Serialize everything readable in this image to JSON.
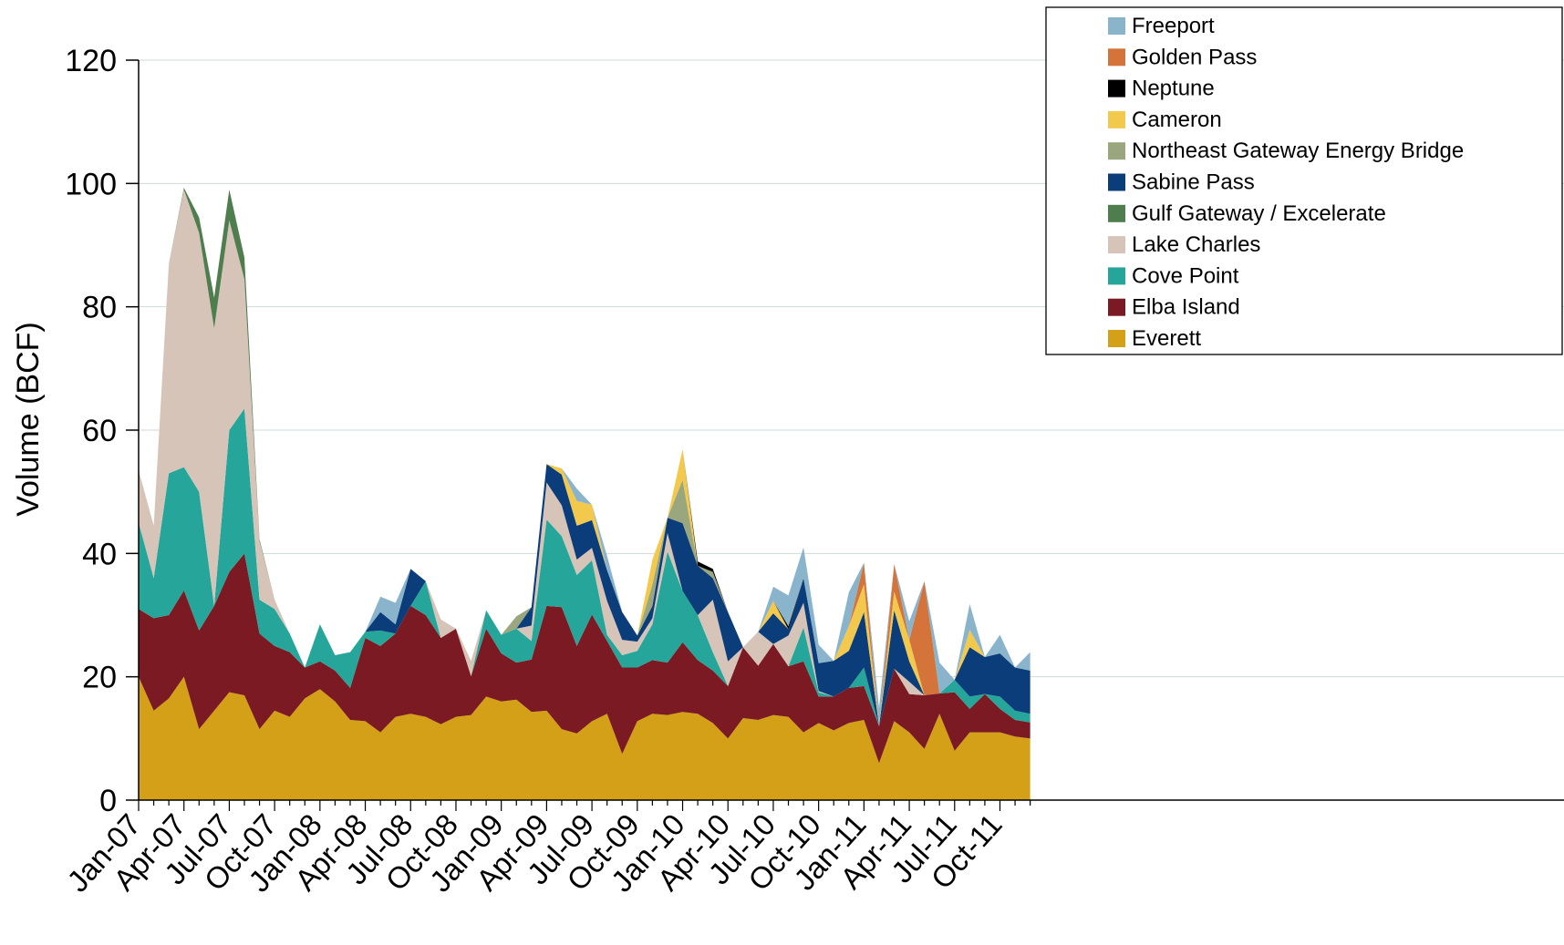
{
  "chart_data": {
    "type": "area",
    "stacked": true,
    "title": "",
    "xlabel": "",
    "ylabel": "Volume (BCF)",
    "ylim": [
      0,
      120
    ],
    "yticks": [
      0,
      20,
      40,
      60,
      80,
      100,
      120
    ],
    "grid": "horizontal",
    "legend_position": "top-right",
    "x_tick_labels": [
      "Jan-07",
      "Apr-07",
      "Jul-07",
      "Oct-07",
      "Jan-08",
      "Apr-08",
      "Jul-08",
      "Oct-08",
      "Jan-09",
      "Apr-09",
      "Jul-09",
      "Oct-09",
      "Jan-10",
      "Apr-10",
      "Jul-10",
      "Oct-10",
      "Jan-11",
      "Apr-11",
      "Jul-11",
      "Oct-11"
    ],
    "x": [
      "Jan-07",
      "Feb-07",
      "Mar-07",
      "Apr-07",
      "May-07",
      "Jun-07",
      "Jul-07",
      "Aug-07",
      "Sep-07",
      "Oct-07",
      "Nov-07",
      "Dec-07",
      "Jan-08",
      "Feb-08",
      "Mar-08",
      "Apr-08",
      "May-08",
      "Jun-08",
      "Jul-08",
      "Aug-08",
      "Sep-08",
      "Oct-08",
      "Nov-08",
      "Dec-08",
      "Jan-09",
      "Feb-09",
      "Mar-09",
      "Apr-09",
      "May-09",
      "Jun-09",
      "Jul-09",
      "Aug-09",
      "Sep-09",
      "Oct-09",
      "Nov-09",
      "Dec-09",
      "Jan-10",
      "Feb-10",
      "Mar-10",
      "Apr-10",
      "May-10",
      "Jun-10",
      "Jul-10",
      "Aug-10",
      "Sep-10",
      "Oct-10",
      "Nov-10",
      "Dec-10",
      "Jan-11",
      "Feb-11",
      "Mar-11",
      "Apr-11",
      "May-11",
      "Jun-11",
      "Jul-11",
      "Aug-11",
      "Sep-11",
      "Oct-11",
      "Nov-11",
      "Dec-11"
    ],
    "series": [
      {
        "name": "Everett",
        "color": "#D4A017",
        "values": [
          20,
          14.5,
          16.5,
          20,
          11.5,
          14.5,
          17.5,
          17,
          11.5,
          14.5,
          13.5,
          16.5,
          18,
          16,
          13,
          12.8,
          11,
          13.5,
          14,
          13.5,
          12.3,
          13.5,
          13.8,
          16.8,
          16,
          16.3,
          14.3,
          14.5,
          11.5,
          10.8,
          12.8,
          14,
          7.5,
          12.8,
          14,
          13.8,
          14.3,
          14,
          12.5,
          10,
          13.3,
          13,
          13.8,
          13.5,
          11,
          12.5,
          11.3,
          12.5,
          13,
          6,
          12.8,
          11,
          8.3,
          14,
          8,
          11,
          11,
          11,
          10.3,
          10
        ]
      },
      {
        "name": "Elba Island",
        "color": "#7B1A22",
        "values": [
          11,
          15,
          13.5,
          14,
          16,
          17,
          19.5,
          23,
          15.5,
          10.5,
          10.5,
          5,
          4.5,
          5,
          5.2,
          13.5,
          14,
          13.5,
          17.5,
          16.5,
          14,
          14.3,
          6.3,
          11,
          7.8,
          6,
          8.5,
          17,
          19.8,
          14.2,
          17.3,
          11.8,
          14,
          8.7,
          8.7,
          8.5,
          11.3,
          8.7,
          8.5,
          8.5,
          11.5,
          8.8,
          11.5,
          8.2,
          11.5,
          4.3,
          5.5,
          5.7,
          5.5,
          6,
          8.5,
          6.2,
          8.7,
          3.3,
          9.5,
          3.8,
          6.2,
          3.8,
          2.7,
          2.6
        ]
      },
      {
        "name": "Cove Point",
        "color": "#26A69A",
        "values": [
          14,
          6.5,
          23,
          20,
          22.5,
          0,
          23,
          23.5,
          5.5,
          6,
          3,
          0,
          6,
          2.5,
          5.8,
          1,
          2.5,
          0,
          0,
          5.5,
          0,
          0,
          0,
          3,
          3,
          5.5,
          3,
          14,
          11.5,
          11.5,
          8.8,
          1,
          2,
          2.7,
          5.8,
          18,
          8.3,
          7.3,
          3,
          0,
          0,
          0,
          0,
          0,
          5.5,
          0.7,
          0,
          0,
          3,
          0,
          0,
          0,
          0,
          0,
          2,
          2,
          0,
          2,
          1.5,
          1.4
        ]
      },
      {
        "name": "Lake Charles",
        "color": "#D7C4B8",
        "values": [
          8.5,
          8.5,
          34,
          45,
          42,
          45,
          34,
          21,
          9.5,
          1.5,
          0,
          0,
          0,
          0,
          0,
          0,
          0,
          0,
          0,
          0,
          3,
          0,
          2.5,
          0,
          0,
          0,
          2.5,
          6,
          5,
          2.5,
          2,
          5.5,
          2.5,
          1.5,
          1,
          3,
          0,
          0,
          8.5,
          4,
          0,
          5.5,
          0,
          5,
          4,
          0.2,
          0,
          0,
          0,
          0,
          0,
          2,
          0,
          0,
          0,
          0,
          0,
          0,
          0,
          0
        ]
      },
      {
        "name": "Gulf Gateway / Excelerate",
        "color": "#4E7D4E",
        "values": [
          0,
          0,
          0,
          0.3,
          2.5,
          5,
          5,
          3.5,
          0.3,
          0,
          0,
          0,
          0,
          0,
          0,
          0,
          0,
          0,
          0,
          0,
          0,
          0,
          0,
          0,
          0,
          0,
          0,
          0,
          0,
          0,
          0,
          0,
          0,
          0,
          0,
          0,
          0,
          0,
          0,
          0,
          0,
          0,
          0,
          0,
          0,
          0,
          0,
          0,
          0,
          0,
          0,
          0,
          0,
          0,
          0,
          0,
          0,
          0,
          0,
          0
        ]
      },
      {
        "name": "Sabine Pass",
        "color": "#0B3D7A",
        "values": [
          0,
          0,
          0,
          0,
          0,
          0,
          0,
          0,
          0,
          0,
          0,
          0,
          0,
          0,
          0,
          0,
          3,
          1.5,
          6,
          0,
          0,
          0,
          0,
          0,
          0,
          0,
          3,
          3,
          5,
          5.5,
          4.5,
          5,
          4.5,
          1,
          2,
          2.5,
          11,
          8,
          3.5,
          8,
          0,
          0,
          5,
          1,
          4,
          4.5,
          5.8,
          6,
          9,
          0,
          9.5,
          3.3,
          0,
          0,
          0,
          8,
          6,
          7,
          7,
          7
        ]
      },
      {
        "name": "Northeast Gateway Energy Bridge",
        "color": "#9AA67E",
        "values": [
          0,
          0,
          0,
          0,
          0,
          0,
          0,
          0,
          0,
          0,
          0,
          0,
          0,
          0,
          0,
          0,
          0,
          0,
          0,
          0,
          0,
          0,
          0,
          0,
          0,
          2,
          0,
          0,
          0,
          0,
          0,
          0,
          0,
          0,
          3.5,
          0,
          7,
          0,
          1,
          0,
          0,
          0,
          0,
          0,
          0,
          0,
          0,
          0,
          0,
          0,
          0,
          0,
          0,
          0,
          0,
          0,
          0,
          0,
          0,
          0
        ]
      },
      {
        "name": "Cameron",
        "color": "#F2C94C",
        "values": [
          0,
          0,
          0,
          0,
          0,
          0,
          0,
          0,
          0,
          0,
          0,
          0,
          0,
          0,
          0,
          0,
          0,
          0,
          0,
          0,
          0,
          0,
          0,
          0,
          0,
          0,
          0,
          0,
          1,
          4,
          2.5,
          0,
          0,
          0,
          4,
          0,
          5,
          0,
          0,
          0,
          0,
          0,
          2,
          0,
          0,
          0,
          0,
          4,
          4.5,
          0,
          3,
          3.5,
          0,
          0,
          0,
          2.8,
          0,
          0,
          0,
          0
        ]
      },
      {
        "name": "Neptune",
        "color": "#000000",
        "values": [
          0,
          0,
          0,
          0,
          0,
          0,
          0,
          0,
          0,
          0,
          0,
          0,
          0,
          0,
          0,
          0,
          0,
          0,
          0,
          0,
          0,
          0,
          0,
          0,
          0,
          0,
          0,
          0,
          0,
          0,
          0,
          0,
          0,
          0,
          0,
          0,
          0,
          0.7,
          0.5,
          0,
          0,
          0,
          0,
          0.5,
          0,
          0,
          0,
          0,
          0,
          0,
          0,
          0,
          0,
          0,
          0,
          0,
          0,
          0,
          0,
          0
        ]
      },
      {
        "name": "Golden Pass",
        "color": "#D4733A",
        "values": [
          0,
          0,
          0,
          0,
          0,
          0,
          0,
          0,
          0,
          0,
          0,
          0,
          0,
          0,
          0,
          0,
          0,
          0,
          0,
          0,
          0,
          0,
          0,
          0,
          0,
          0,
          0,
          0,
          0,
          0,
          0,
          0,
          0,
          0,
          0,
          0,
          0,
          0,
          0,
          0,
          0,
          0,
          0,
          0,
          0,
          0,
          0,
          0,
          3.5,
          0,
          4.5,
          0,
          18.5,
          0,
          0,
          0,
          0,
          0,
          0,
          0
        ]
      },
      {
        "name": "Freeport",
        "color": "#8AB4CC",
        "values": [
          0,
          0,
          0,
          0,
          0,
          0,
          0,
          0,
          0,
          0,
          0,
          0,
          0,
          0,
          0,
          0,
          2.5,
          3.5,
          0,
          0,
          0,
          0,
          0,
          0,
          0,
          0,
          0,
          0,
          0,
          2,
          0,
          2.3,
          0,
          0,
          0,
          0,
          0,
          0,
          0,
          0,
          0,
          0,
          2.3,
          5,
          5,
          3,
          0,
          5.5,
          0,
          3,
          0,
          3,
          0,
          5,
          0,
          4.2,
          0,
          3,
          0,
          3
        ]
      }
    ]
  }
}
